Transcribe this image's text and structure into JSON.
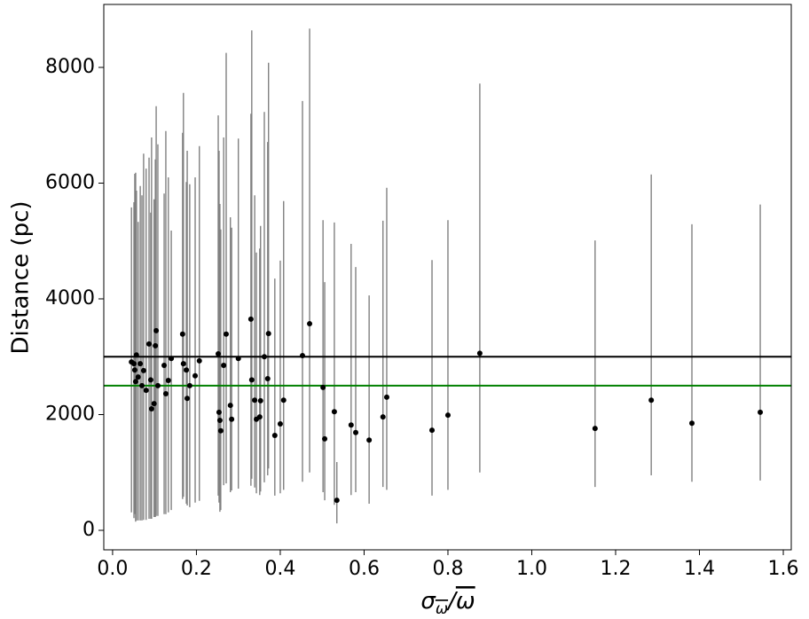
{
  "chart_data": {
    "type": "errorbar-scatter",
    "ylabel": "Distance (pc)",
    "xlabel_main": "σ",
    "xlabel_sub": "ω",
    "xlabel_slash": "/",
    "xlabel_over": "ω",
    "xlim": [
      -0.021,
      1.619
    ],
    "ylim": [
      -337,
      9088
    ],
    "xticks": [
      {
        "value": 0,
        "label": "0.0"
      },
      0.2,
      0.4,
      0.6,
      0.8,
      {
        "value": 1,
        "label": "1.0"
      },
      1.2,
      1.4,
      1.6
    ],
    "yticks": [
      0,
      2000,
      4000,
      6000,
      8000
    ],
    "point_color": "#000000",
    "errorbar_color": "#808080",
    "grid": false,
    "hlines": [
      {
        "value": 3000,
        "color": "#000000"
      },
      {
        "value": 2500,
        "color": "#008000"
      }
    ],
    "x": [
      1.545,
      1.382,
      1.285,
      1.151,
      0.876,
      0.8,
      0.762,
      0.654,
      0.645,
      0.612,
      0.58,
      0.569,
      0.535,
      0.529,
      0.506,
      0.502,
      0.47,
      0.453,
      0.408,
      0.4,
      0.387,
      0.372,
      0.37,
      0.362,
      0.353,
      0.351,
      0.343,
      0.339,
      0.332,
      0.33,
      0.3,
      0.284,
      0.281,
      0.271,
      0.265,
      0.258,
      0.256,
      0.254,
      0.252,
      0.207,
      0.197,
      0.184,
      0.178,
      0.176,
      0.169,
      0.167,
      0.14,
      0.133,
      0.127,
      0.123,
      0.108,
      0.104,
      0.102,
      0.099,
      0.093,
      0.091,
      0.087,
      0.08,
      0.074,
      0.07,
      0.066,
      0.061,
      0.057,
      0.055,
      0.051,
      0.053,
      0.045
    ],
    "y": [
      2040,
      1850,
      2250,
      1760,
      3060,
      1990,
      1730,
      2300,
      1960,
      1560,
      1690,
      1820,
      520,
      2050,
      1580,
      2470,
      3570,
      3020,
      2250,
      1840,
      1640,
      3400,
      2620,
      3000,
      2240,
      1960,
      1920,
      2250,
      2600,
      3650,
      2970,
      1920,
      2160,
      3390,
      2850,
      1720,
      1900,
      2040,
      3050,
      2930,
      2670,
      2500,
      2280,
      2770,
      2880,
      3390,
      2970,
      2590,
      2360,
      2850,
      2500,
      3450,
      3190,
      2190,
      2100,
      2600,
      3220,
      2420,
      2760,
      2500,
      2880,
      2650,
      3030,
      2570,
      2880,
      2770,
      2910
    ],
    "y_low": [
      860,
      840,
      950,
      750,
      1000,
      700,
      600,
      700,
      750,
      460,
      660,
      610,
      120,
      440,
      520,
      660,
      1000,
      840,
      700,
      640,
      600,
      1070,
      950,
      830,
      670,
      610,
      640,
      740,
      890,
      770,
      720,
      690,
      660,
      810,
      780,
      350,
      320,
      480,
      600,
      510,
      480,
      400,
      430,
      460,
      580,
      540,
      350,
      310,
      280,
      280,
      250,
      250,
      230,
      230,
      200,
      200,
      200,
      180,
      180,
      170,
      170,
      170,
      170,
      150,
      210,
      280,
      310
    ],
    "y_high": [
      5630,
      5290,
      6150,
      5010,
      7720,
      5360,
      4670,
      5920,
      5350,
      4060,
      4550,
      4950,
      1180,
      5320,
      4290,
      5360,
      8670,
      7420,
      5690,
      4660,
      4350,
      8080,
      6710,
      7230,
      5260,
      4870,
      4800,
      5790,
      8640,
      7200,
      6770,
      5230,
      5410,
      8250,
      6790,
      5200,
      5640,
      6560,
      7170,
      6640,
      6100,
      5980,
      6560,
      6020,
      7560,
      6870,
      5180,
      6100,
      6900,
      5820,
      6670,
      7330,
      6410,
      5720,
      6790,
      5490,
      6440,
      6250,
      6510,
      5790,
      5950,
      5330,
      5870,
      6180,
      5670,
      6160,
      5580
    ]
  }
}
